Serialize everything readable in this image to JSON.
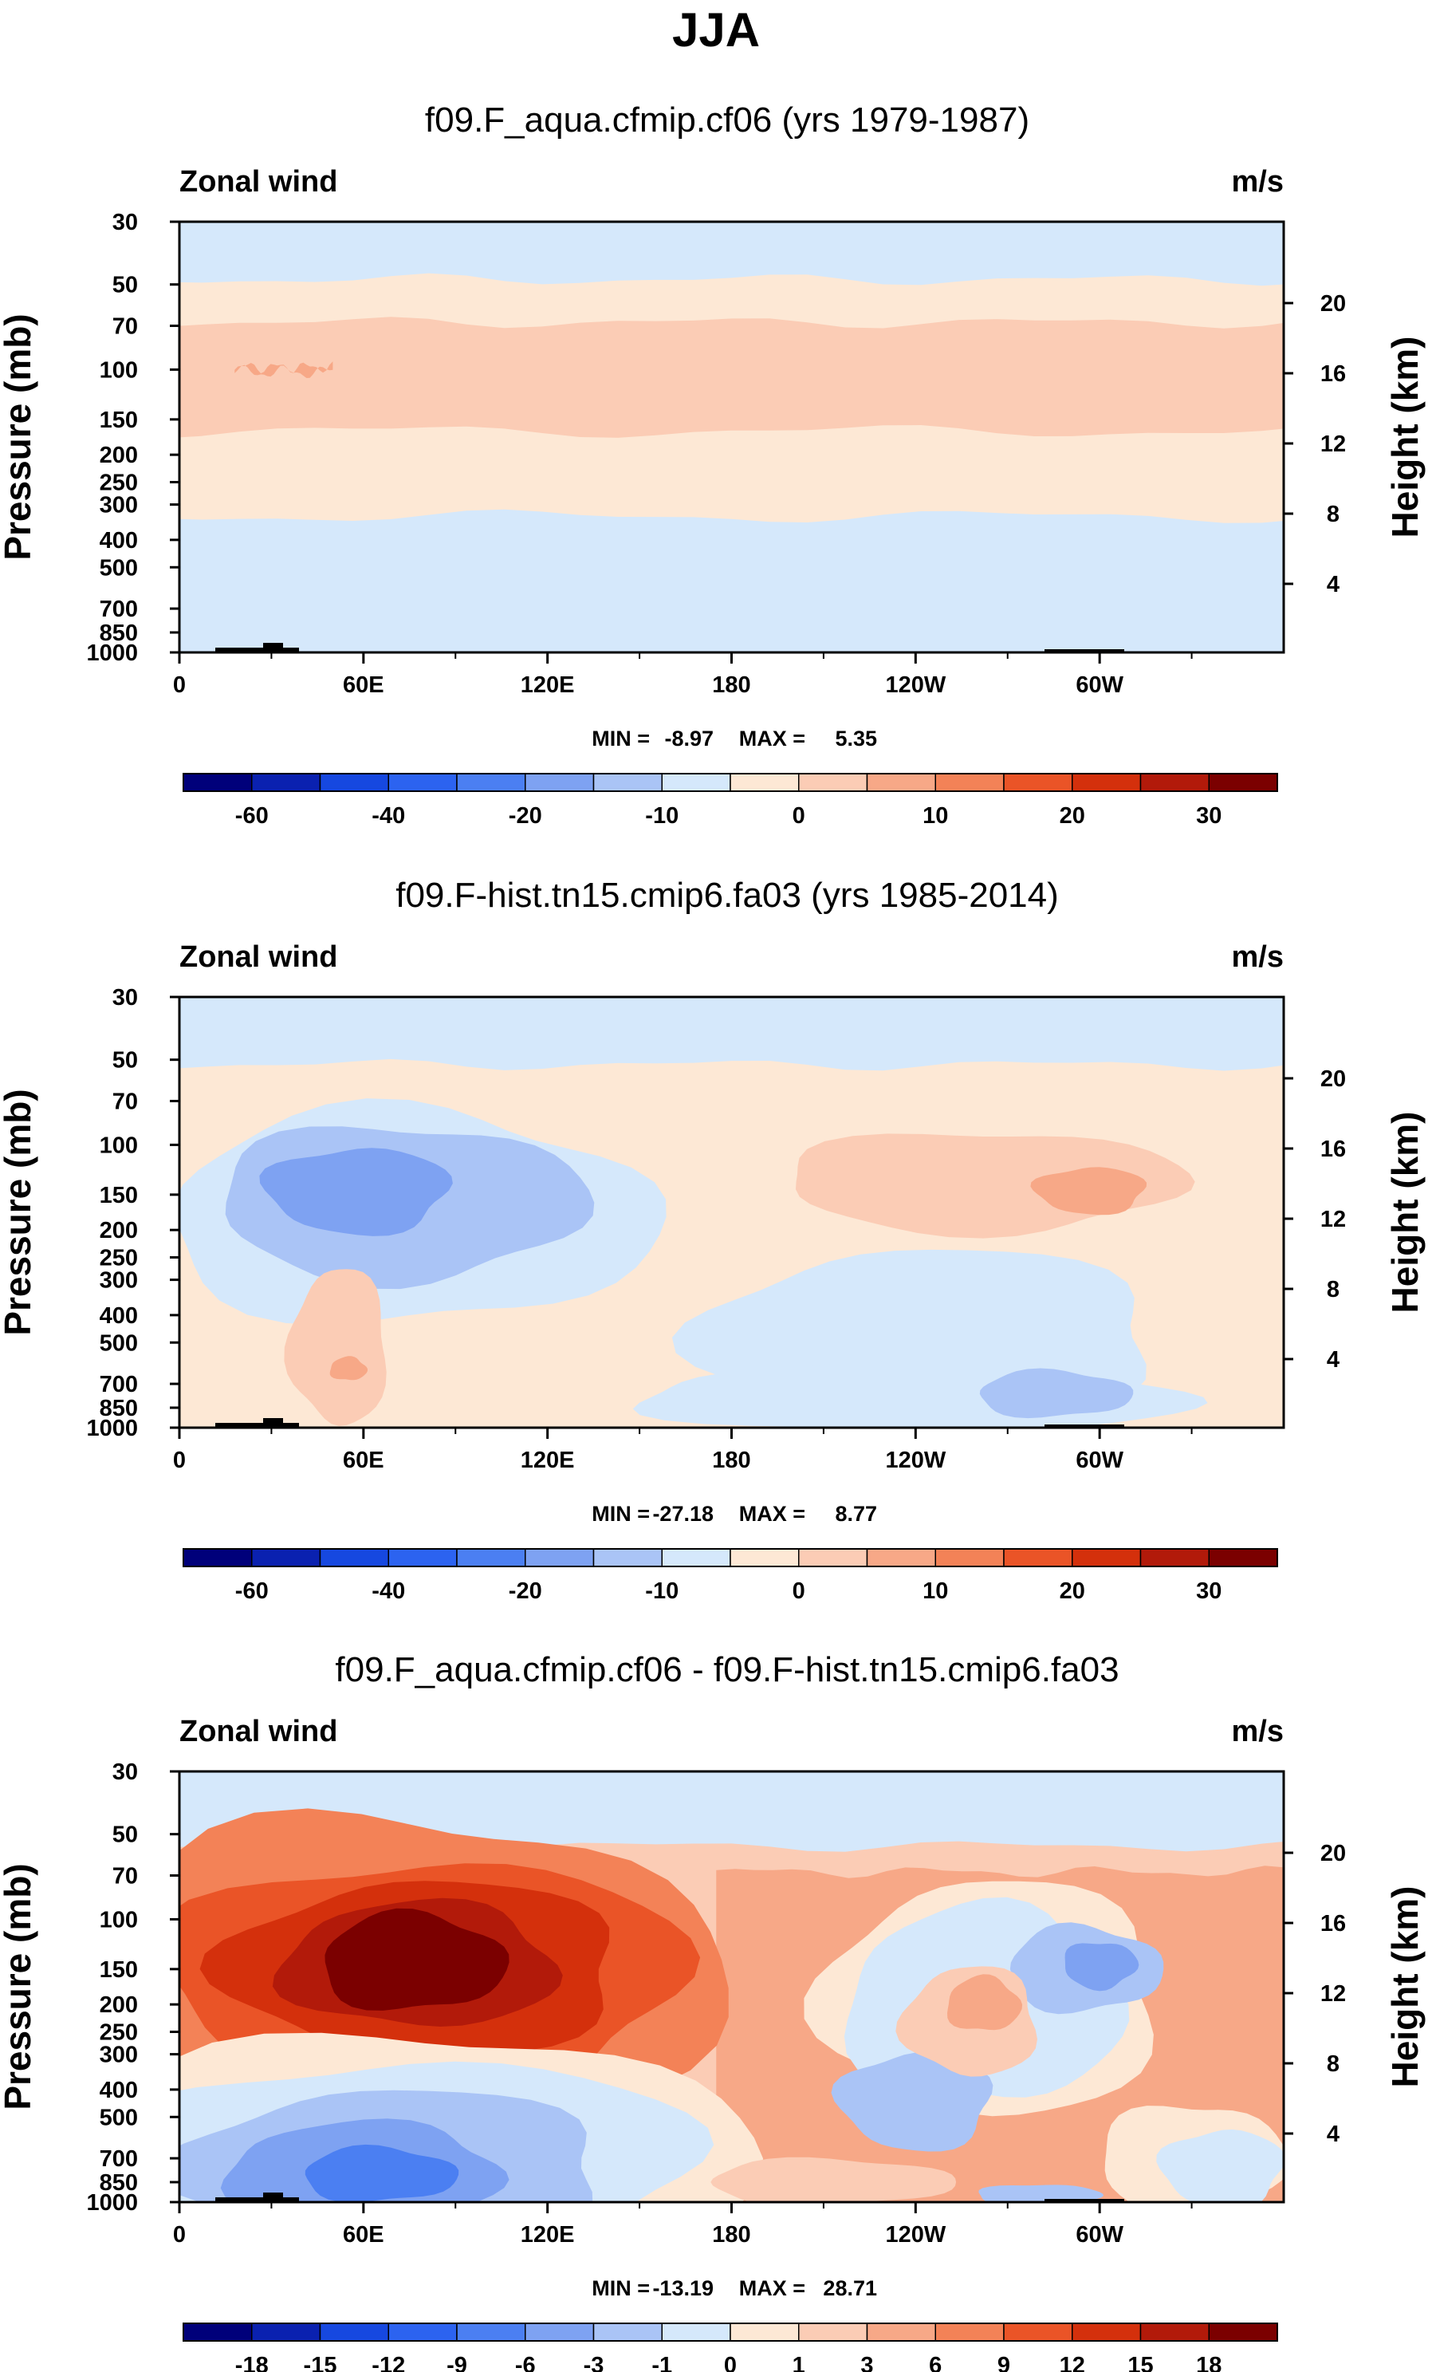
{
  "figure_title": "JJA",
  "colors": {
    "full": [
      "#00007a",
      "#0a21b0",
      "#1648e0",
      "#2c63f0",
      "#4b7ff2",
      "#7ea2f2",
      "#aac4f6",
      "#d5e8fb",
      "#fde8d5",
      "#fbccb5",
      "#f7a887",
      "#f38257",
      "#ea5427",
      "#d4300c",
      "#b21a0a",
      "#7b0000"
    ],
    "diff": [
      "#00007a",
      "#0a21b0",
      "#1648e0",
      "#2c63f0",
      "#4b7ff2",
      "#7ea2f2",
      "#aac4f6",
      "#d5e8fb",
      "#fde8d5",
      "#fbccb5",
      "#f7a887",
      "#f38257",
      "#ea5427",
      "#d4300c",
      "#b21a0a",
      "#7b0000"
    ]
  },
  "chart_data": [
    {
      "type": "contour",
      "title": "f09.F_aqua.cfmip.cf06 (yrs 1979-1987)",
      "left_label": "Zonal wind",
      "right_label": "m/s",
      "ylabel": "Pressure (mb)",
      "ylabel_right": "Height (km)",
      "xlabel": "",
      "x_ticks": [
        "0",
        "60E",
        "120E",
        "180",
        "120W",
        "60W"
      ],
      "x_tick_lons": [
        0,
        60,
        120,
        180,
        240,
        300
      ],
      "xlim": [
        0,
        360
      ],
      "y_ticks": [
        "30",
        "50",
        "70",
        "100",
        "150",
        "200",
        "250",
        "300",
        "400",
        "500",
        "700",
        "850",
        "1000"
      ],
      "y_tick_values": [
        30,
        50,
        70,
        100,
        150,
        200,
        250,
        300,
        400,
        500,
        700,
        850,
        1000
      ],
      "ylim": [
        1000,
        30
      ],
      "height_ticks": [
        "20",
        "16",
        "12",
        "8",
        "4"
      ],
      "height_tick_values": [
        20,
        16,
        12,
        8,
        4
      ],
      "min_label": "MIN =",
      "min_value": "-8.97",
      "max_label": "MAX =",
      "max_value": "5.35",
      "colorbar_levels": [
        -70,
        -60,
        -50,
        -40,
        -30,
        -20,
        -15,
        -10,
        -5,
        0,
        5,
        10,
        15,
        20,
        25,
        30
      ],
      "colorbar_labels": [
        "-60",
        "-40",
        "-20",
        "-10",
        "0",
        "10",
        "20",
        "30"
      ],
      "colorbar_label_boundary_index": [
        1,
        3,
        5,
        7,
        9,
        11,
        13,
        15
      ],
      "colorscale": "full",
      "bands": [
        {
          "level": 8,
          "p_top": 48,
          "p_bot": 330
        },
        {
          "level": 9,
          "p_top": 68,
          "p_bot": 165
        },
        {
          "level": 10,
          "p_top": 98,
          "p_bot": 102,
          "lon_start": 18,
          "lon_end": 50
        }
      ],
      "blobs": []
    },
    {
      "type": "contour",
      "title": "f09.F-hist.tn15.cmip6.fa03 (yrs 1985-2014)",
      "left_label": "Zonal wind",
      "right_label": "m/s",
      "ylabel": "Pressure (mb)",
      "ylabel_right": "Height (km)",
      "xlabel": "",
      "x_ticks": [
        "0",
        "60E",
        "120E",
        "180",
        "120W",
        "60W"
      ],
      "x_tick_lons": [
        0,
        60,
        120,
        180,
        240,
        300
      ],
      "xlim": [
        0,
        360
      ],
      "y_ticks": [
        "30",
        "50",
        "70",
        "100",
        "150",
        "200",
        "250",
        "300",
        "400",
        "500",
        "700",
        "850",
        "1000"
      ],
      "y_tick_values": [
        30,
        50,
        70,
        100,
        150,
        200,
        250,
        300,
        400,
        500,
        700,
        850,
        1000
      ],
      "ylim": [
        1000,
        30
      ],
      "height_ticks": [
        "20",
        "16",
        "12",
        "8",
        "4"
      ],
      "height_tick_values": [
        20,
        16,
        12,
        8,
        4
      ],
      "min_label": "MIN =",
      "min_value": "-27.18",
      "max_label": "MAX =",
      "max_value": "8.77",
      "colorbar_levels": [
        -70,
        -60,
        -50,
        -40,
        -30,
        -20,
        -15,
        -10,
        -5,
        0,
        5,
        10,
        15,
        20,
        25,
        30
      ],
      "colorbar_labels": [
        "-60",
        "-40",
        "-20",
        "-10",
        "0",
        "10",
        "20",
        "30"
      ],
      "colorbar_label_boundary_index": [
        1,
        3,
        5,
        7,
        9,
        11,
        13,
        15
      ],
      "colorscale": "full",
      "bands": [
        {
          "level": 8,
          "p_top": 52,
          "p_bot": 1000
        }
      ],
      "blobs": [
        {
          "level": 7,
          "lon": 75,
          "p": 180,
          "dlon": 80,
          "dp": 0.55
        },
        {
          "level": 6,
          "lon": 72,
          "p": 160,
          "dlon": 60,
          "dp": 0.4
        },
        {
          "level": 5,
          "lon": 58,
          "p": 145,
          "dlon": 30,
          "dp": 0.22
        },
        {
          "level": 7,
          "lon": 245,
          "p": 480,
          "dlon": 75,
          "dp": 0.45
        },
        {
          "level": 7,
          "lon": 240,
          "p": 780,
          "dlon": 90,
          "dp": 0.18
        },
        {
          "level": 6,
          "lon": 285,
          "p": 760,
          "dlon": 25,
          "dp": 0.12
        },
        {
          "level": 9,
          "lon": 262,
          "p": 135,
          "dlon": 65,
          "dp": 0.26
        },
        {
          "level": 10,
          "lon": 297,
          "p": 145,
          "dlon": 18,
          "dp": 0.12
        },
        {
          "level": 9,
          "lon": 52,
          "p": 520,
          "dlon": 16,
          "dp": 0.4
        },
        {
          "level": 10,
          "lon": 55,
          "p": 620,
          "dlon": 6,
          "dp": 0.06
        }
      ]
    },
    {
      "type": "contour",
      "title": "f09.F_aqua.cfmip.cf06 - f09.F-hist.tn15.cmip6.fa03",
      "left_label": "Zonal wind",
      "right_label": "m/s",
      "ylabel": "Pressure (mb)",
      "ylabel_right": "Height (km)",
      "xlabel": "",
      "x_ticks": [
        "0",
        "60E",
        "120E",
        "180",
        "120W",
        "60W"
      ],
      "x_tick_lons": [
        0,
        60,
        120,
        180,
        240,
        300
      ],
      "xlim": [
        0,
        360
      ],
      "y_ticks": [
        "30",
        "50",
        "70",
        "100",
        "150",
        "200",
        "250",
        "300",
        "400",
        "500",
        "700",
        "850",
        "1000"
      ],
      "y_tick_values": [
        30,
        50,
        70,
        100,
        150,
        200,
        250,
        300,
        400,
        500,
        700,
        850,
        1000
      ],
      "ylim": [
        1000,
        30
      ],
      "height_ticks": [
        "20",
        "16",
        "12",
        "8",
        "4"
      ],
      "height_tick_values": [
        20,
        16,
        12,
        8,
        4
      ],
      "min_label": "MIN =",
      "min_value": "-13.19",
      "max_label": "MAX =",
      "max_value": "28.71",
      "colorbar_levels": [
        -21,
        -18,
        -15,
        -12,
        -9,
        -6,
        -3,
        -1,
        0,
        1,
        3,
        6,
        9,
        12,
        15,
        18
      ],
      "colorbar_labels": [
        "-18",
        "-15",
        "-12",
        "-9",
        "-6",
        "-3",
        "-1",
        "0",
        "1",
        "3",
        "6",
        "9",
        "12",
        "15",
        "18"
      ],
      "colorbar_label_boundary_index": [
        1,
        2,
        3,
        4,
        5,
        6,
        7,
        8,
        9,
        10,
        11,
        12,
        13,
        14,
        15
      ],
      "colorscale": "diff",
      "bands": [
        {
          "level": 9,
          "p_top": 55,
          "p_bot": 1000
        },
        {
          "level": 10,
          "p_top": 68,
          "p_bot": 1000,
          "lon_start": 175,
          "lon_end": 360
        }
      ],
      "blobs": [
        {
          "level": 11,
          "lon": 75,
          "p": 175,
          "dlon": 100,
          "dp": 0.9
        },
        {
          "level": 12,
          "lon": 80,
          "p": 160,
          "dlon": 85,
          "dp": 0.6
        },
        {
          "level": 13,
          "lon": 80,
          "p": 150,
          "dlon": 65,
          "dp": 0.45
        },
        {
          "level": 14,
          "lon": 78,
          "p": 145,
          "dlon": 45,
          "dp": 0.32
        },
        {
          "level": 15,
          "lon": 76,
          "p": 142,
          "dlon": 30,
          "dp": 0.25
        },
        {
          "level": 8,
          "lon": 80,
          "p": 700,
          "dlon": 105,
          "dp": 0.65
        },
        {
          "level": 7,
          "lon": 75,
          "p": 720,
          "dlon": 95,
          "dp": 0.52
        },
        {
          "level": 6,
          "lon": 70,
          "p": 760,
          "dlon": 70,
          "dp": 0.4
        },
        {
          "level": 5,
          "lon": 60,
          "p": 780,
          "dlon": 45,
          "dp": 0.25
        },
        {
          "level": 4,
          "lon": 65,
          "p": 800,
          "dlon": 25,
          "dp": 0.14
        },
        {
          "level": 8,
          "lon": 330,
          "p": 720,
          "dlon": 30,
          "dp": 0.3
        },
        {
          "level": 7,
          "lon": 340,
          "p": 760,
          "dlon": 20,
          "dp": 0.2
        },
        {
          "level": 8,
          "lon": 265,
          "p": 190,
          "dlon": 55,
          "dp": 0.6
        },
        {
          "level": 7,
          "lon": 262,
          "p": 200,
          "dlon": 45,
          "dp": 0.5
        },
        {
          "level": 6,
          "lon": 295,
          "p": 150,
          "dlon": 25,
          "dp": 0.22
        },
        {
          "level": 5,
          "lon": 300,
          "p": 145,
          "dlon": 12,
          "dp": 0.12
        },
        {
          "level": 6,
          "lon": 240,
          "p": 440,
          "dlon": 25,
          "dp": 0.25
        },
        {
          "level": 9,
          "lon": 258,
          "p": 230,
          "dlon": 22,
          "dp": 0.28
        },
        {
          "level": 10,
          "lon": 262,
          "p": 200,
          "dlon": 12,
          "dp": 0.14
        },
        {
          "level": 9,
          "lon": 212,
          "p": 850,
          "dlon": 40,
          "dp": 0.12
        },
        {
          "level": 6,
          "lon": 280,
          "p": 950,
          "dlon": 20,
          "dp": 0.06
        }
      ]
    }
  ]
}
